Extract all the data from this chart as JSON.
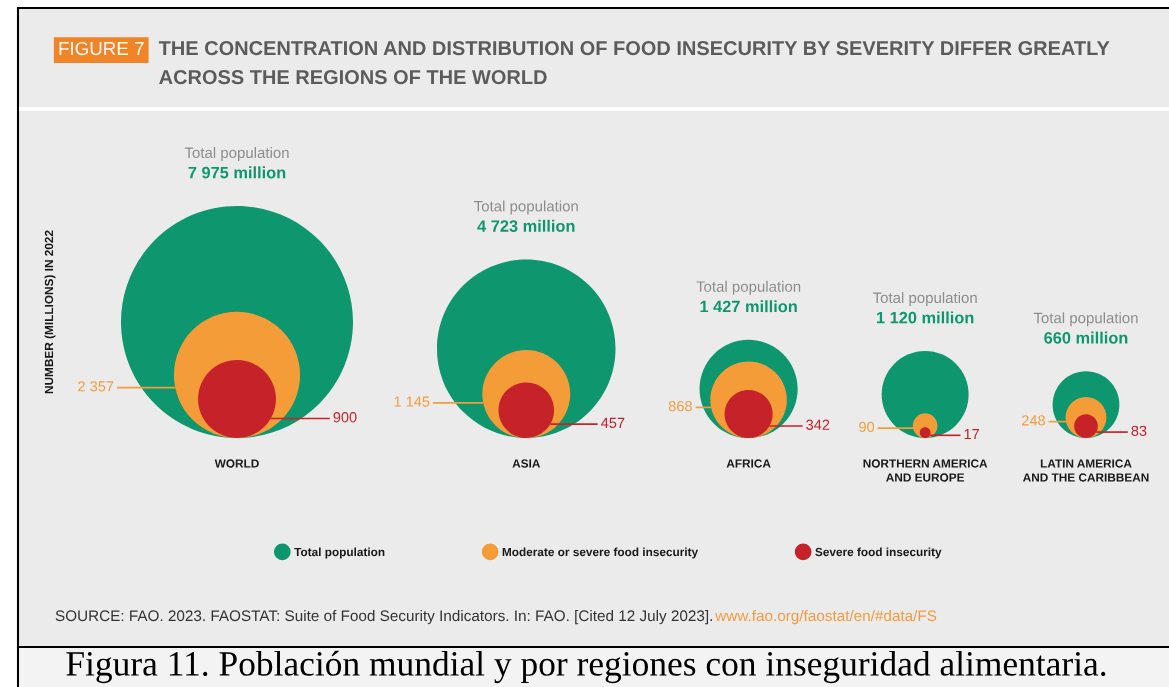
{
  "chart_data": {
    "type": "other",
    "title": "THE CONCENTRATION AND DISTRIBUTION OF FOOD INSECURITY BY SEVERITY DIFFER GREATLY\nACROSS THE REGIONS OF THE WORLD",
    "ylabel": "NUMBER (MILLIONS) IN 2022",
    "categories": [
      "WORLD",
      "ASIA",
      "AFRICA",
      "NORTHERN AMERICA\nAND EUROPE",
      "LATIN AMERICA\nAND THE CARIBBEAN"
    ],
    "series": [
      {
        "name": "Total population",
        "color": "#0e966e",
        "values": [
          7975,
          4723,
          1427,
          1120,
          660
        ],
        "value_labels": [
          "7 975 million",
          "4 723 million",
          "1 427 million",
          "1 120 million",
          "660 million"
        ]
      },
      {
        "name": "Moderate or severe food insecurity",
        "color": "#f49c38",
        "values": [
          2357,
          1145,
          868,
          90,
          248
        ],
        "value_labels": [
          "2 357",
          "1 145",
          "868",
          "90",
          "248"
        ]
      },
      {
        "name": "Severe food insecurity",
        "color": "#c62229",
        "values": [
          900,
          457,
          342,
          17,
          83
        ],
        "value_labels": [
          "900",
          "457",
          "342",
          "17",
          "83"
        ]
      }
    ],
    "legend": "bottom",
    "annotations": [
      "FIGURE 7",
      "SOURCE: FAO. 2023. FAOSTAT: Suite of Food Security Indicators. In: FAO. [Cited 12 July 2023].",
      "www.fao.org/faostat/en/#data/FS",
      "Figura 11. Población mundial y por regiones con inseguridad alimentaria."
    ]
  }
}
